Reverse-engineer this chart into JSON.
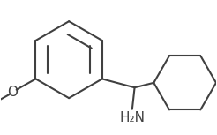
{
  "background_color": "#ffffff",
  "line_color": "#404040",
  "line_width": 1.5,
  "font_size": 11,
  "fig_width": 2.46,
  "fig_height": 1.53,
  "dpi": 100,
  "text_nh2": "H₂N",
  "text_o": "O"
}
